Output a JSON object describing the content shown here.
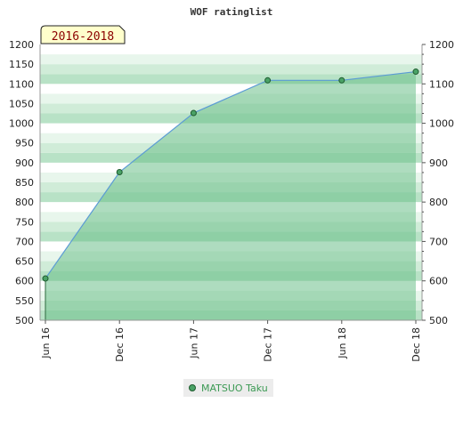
{
  "chart_data": {
    "type": "area",
    "title": "WOF ratinglist",
    "badge": "2016-2018",
    "x": [
      "Jun 16",
      "Dec 16",
      "Jun 17",
      "Dec 17",
      "Jun 18",
      "Dec 18"
    ],
    "series": [
      {
        "name": "MATSUO Taku",
        "values": [
          606,
          876,
          1026,
          1109,
          1109,
          1131
        ]
      }
    ],
    "yticks": [
      500,
      550,
      600,
      650,
      700,
      750,
      800,
      850,
      900,
      950,
      1000,
      1050,
      1100,
      1150,
      1200
    ],
    "yticks_right": [
      500,
      600,
      700,
      800,
      900,
      1000,
      1100,
      1200
    ],
    "ylim": [
      500,
      1200
    ],
    "grid": true,
    "legend_position": "bottom",
    "colors": {
      "line": "#5b9bd5",
      "fill": "#6cc08a",
      "marker": "#4aa266",
      "badge_bg": "#ffffcc"
    }
  }
}
